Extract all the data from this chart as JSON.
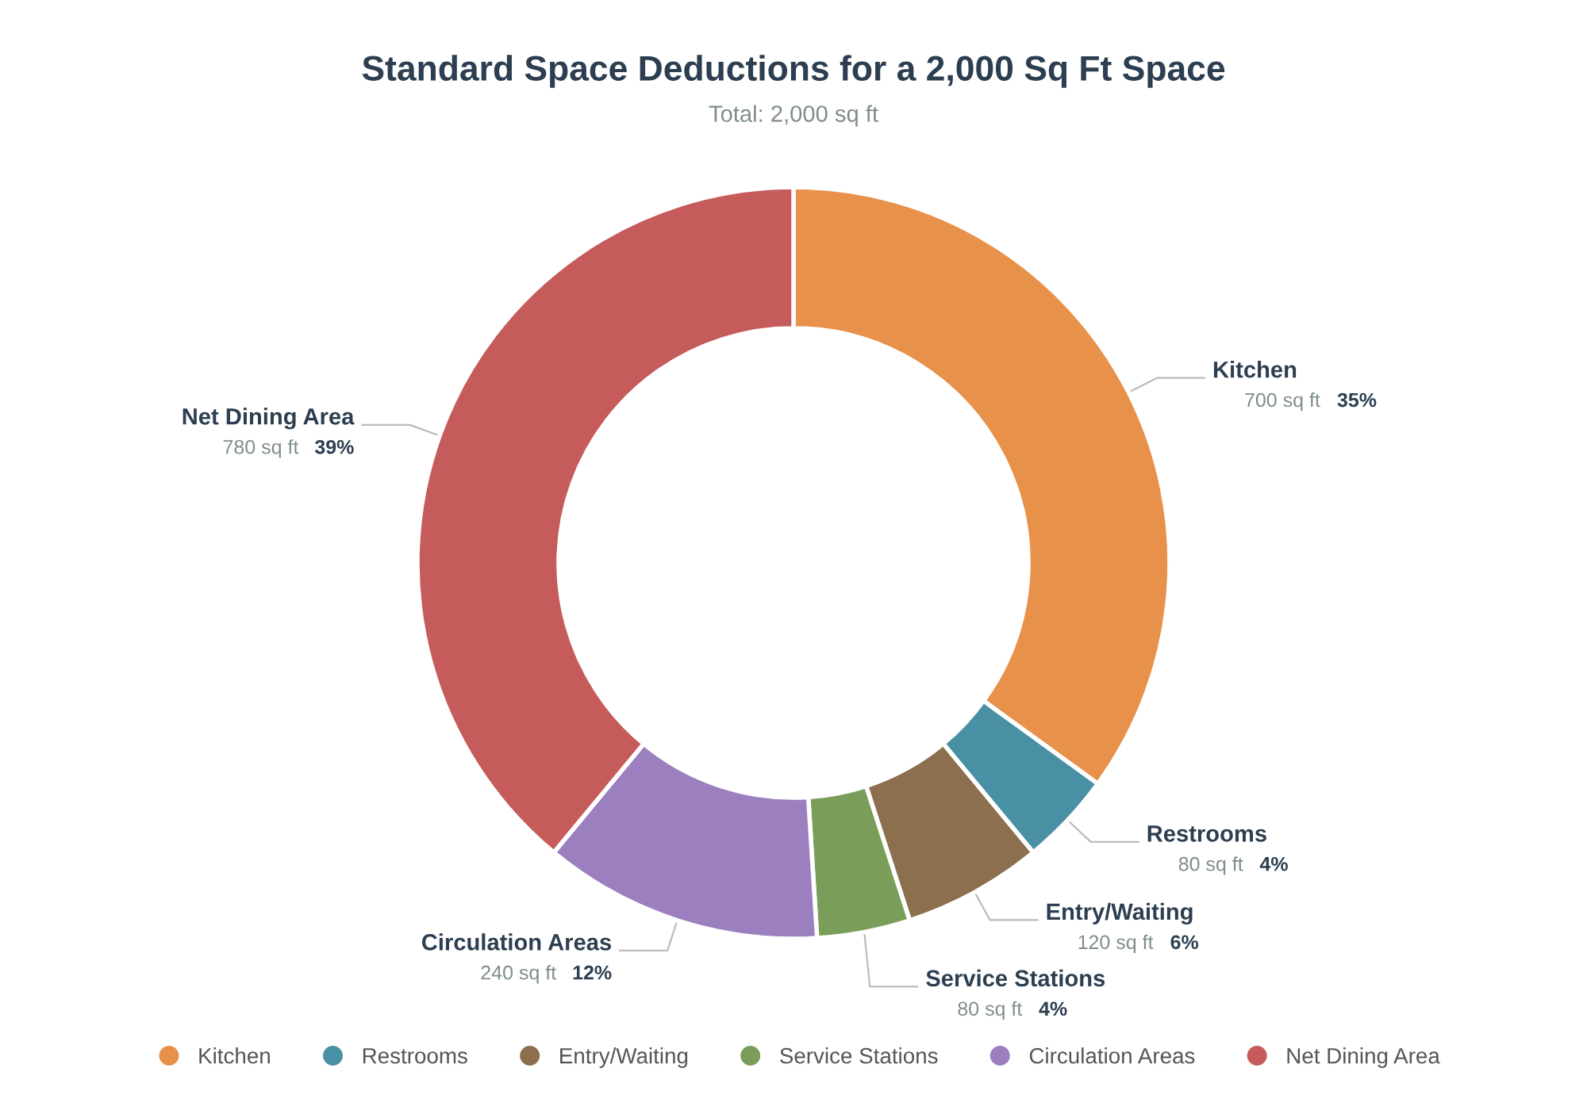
{
  "chart_data": {
    "type": "donut",
    "title": "Standard Space Deductions for a 2,000 Sq Ft Space",
    "subtitle": "Total: 2,000 sq ft",
    "categories": [
      "Kitchen",
      "Restrooms",
      "Entry/Waiting",
      "Service Stations",
      "Circulation Areas",
      "Net Dining Area"
    ],
    "values": [
      700,
      80,
      120,
      80,
      240,
      780
    ],
    "colors": [
      "#e8914b",
      "#4a90a4",
      "#8b6f4e",
      "#7a9e5a",
      "#9b7fbf",
      "#c65b5b"
    ],
    "value_labels": [
      "700 sq ft 35%",
      "80 sq ft 4%",
      "120 sq ft 6%",
      "80 sq ft 4%",
      "240 sq ft 12%",
      "780 sq ft 39%"
    ],
    "legend": "bottom"
  }
}
